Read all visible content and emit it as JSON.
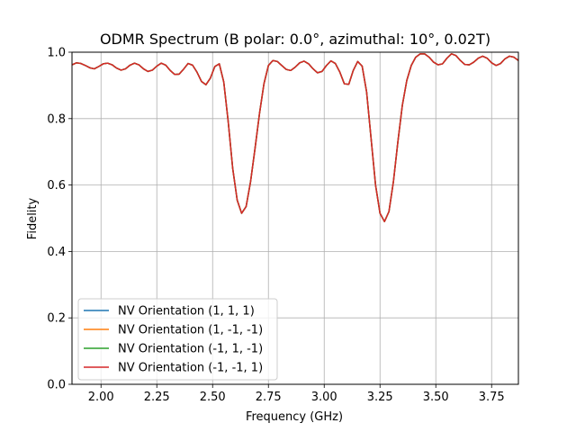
{
  "chart_data": {
    "type": "line",
    "title": "ODMR Spectrum (B polar: 0.0°, azimuthal: 10°, 0.02T)",
    "xlabel": "Frequency (GHz)",
    "ylabel": "Fidelity",
    "xlim": [
      1.87,
      3.87
    ],
    "ylim": [
      0.0,
      1.0
    ],
    "xticks": [
      "2.00",
      "2.25",
      "2.50",
      "2.75",
      "3.00",
      "3.25",
      "3.50",
      "3.75"
    ],
    "yticks": [
      "0.0",
      "0.2",
      "0.4",
      "0.6",
      "0.8",
      "1.0"
    ],
    "grid": true,
    "legend_position": "lower-left",
    "x": [
      1.87,
      1.89,
      1.91,
      1.93,
      1.95,
      1.97,
      1.99,
      2.01,
      2.03,
      2.05,
      2.07,
      2.09,
      2.11,
      2.13,
      2.15,
      2.17,
      2.19,
      2.21,
      2.23,
      2.25,
      2.27,
      2.29,
      2.31,
      2.33,
      2.35,
      2.37,
      2.39,
      2.41,
      2.43,
      2.45,
      2.47,
      2.49,
      2.51,
      2.53,
      2.55,
      2.57,
      2.59,
      2.61,
      2.63,
      2.65,
      2.67,
      2.69,
      2.71,
      2.73,
      2.75,
      2.77,
      2.79,
      2.81,
      2.83,
      2.85,
      2.87,
      2.89,
      2.91,
      2.93,
      2.95,
      2.97,
      2.99,
      3.01,
      3.03,
      3.05,
      3.07,
      3.09,
      3.11,
      3.13,
      3.15,
      3.17,
      3.19,
      3.21,
      3.23,
      3.25,
      3.27,
      3.29,
      3.31,
      3.33,
      3.35,
      3.37,
      3.39,
      3.41,
      3.43,
      3.45,
      3.47,
      3.49,
      3.51,
      3.53,
      3.55,
      3.57,
      3.59,
      3.61,
      3.63,
      3.65,
      3.67,
      3.69,
      3.71,
      3.73,
      3.75,
      3.77,
      3.79,
      3.81,
      3.83,
      3.85,
      3.87
    ],
    "series": [
      {
        "name": "NV Orientation (1, 1, 1)",
        "color": "#1f77b4",
        "y": [
          0.962,
          0.968,
          0.966,
          0.96,
          0.953,
          0.95,
          0.957,
          0.965,
          0.967,
          0.962,
          0.952,
          0.946,
          0.95,
          0.961,
          0.967,
          0.962,
          0.95,
          0.942,
          0.946,
          0.958,
          0.967,
          0.961,
          0.945,
          0.933,
          0.934,
          0.949,
          0.966,
          0.961,
          0.94,
          0.912,
          0.902,
          0.922,
          0.957,
          0.965,
          0.91,
          0.79,
          0.65,
          0.555,
          0.515,
          0.535,
          0.61,
          0.71,
          0.815,
          0.905,
          0.96,
          0.975,
          0.972,
          0.96,
          0.948,
          0.945,
          0.955,
          0.968,
          0.973,
          0.965,
          0.95,
          0.938,
          0.942,
          0.96,
          0.974,
          0.966,
          0.94,
          0.905,
          0.903,
          0.945,
          0.972,
          0.958,
          0.88,
          0.74,
          0.6,
          0.515,
          0.49,
          0.52,
          0.61,
          0.73,
          0.84,
          0.915,
          0.96,
          0.985,
          0.995,
          0.995,
          0.985,
          0.97,
          0.962,
          0.965,
          0.982,
          0.995,
          0.99,
          0.975,
          0.963,
          0.962,
          0.97,
          0.982,
          0.988,
          0.982,
          0.968,
          0.96,
          0.966,
          0.98,
          0.988,
          0.985,
          0.975
        ]
      },
      {
        "name": "NV Orientation (1, -1, -1)",
        "color": "#ff7f0e",
        "y": [
          0.962,
          0.968,
          0.966,
          0.96,
          0.953,
          0.95,
          0.957,
          0.965,
          0.967,
          0.962,
          0.952,
          0.946,
          0.95,
          0.961,
          0.967,
          0.962,
          0.95,
          0.942,
          0.946,
          0.958,
          0.967,
          0.961,
          0.945,
          0.933,
          0.934,
          0.949,
          0.966,
          0.961,
          0.94,
          0.912,
          0.902,
          0.922,
          0.957,
          0.965,
          0.91,
          0.79,
          0.65,
          0.555,
          0.515,
          0.535,
          0.61,
          0.71,
          0.815,
          0.905,
          0.96,
          0.975,
          0.972,
          0.96,
          0.948,
          0.945,
          0.955,
          0.968,
          0.973,
          0.965,
          0.95,
          0.938,
          0.942,
          0.96,
          0.974,
          0.966,
          0.94,
          0.905,
          0.903,
          0.945,
          0.972,
          0.958,
          0.88,
          0.74,
          0.6,
          0.515,
          0.49,
          0.52,
          0.61,
          0.73,
          0.84,
          0.915,
          0.96,
          0.985,
          0.995,
          0.995,
          0.985,
          0.97,
          0.962,
          0.965,
          0.982,
          0.995,
          0.99,
          0.975,
          0.963,
          0.962,
          0.97,
          0.982,
          0.988,
          0.982,
          0.968,
          0.96,
          0.966,
          0.98,
          0.988,
          0.985,
          0.975
        ]
      },
      {
        "name": "NV Orientation (-1, 1, -1)",
        "color": "#2ca02c",
        "y": [
          0.962,
          0.968,
          0.966,
          0.96,
          0.953,
          0.95,
          0.957,
          0.965,
          0.967,
          0.962,
          0.952,
          0.946,
          0.95,
          0.961,
          0.967,
          0.962,
          0.95,
          0.942,
          0.946,
          0.958,
          0.967,
          0.961,
          0.945,
          0.933,
          0.934,
          0.949,
          0.966,
          0.961,
          0.94,
          0.912,
          0.902,
          0.922,
          0.957,
          0.965,
          0.91,
          0.79,
          0.65,
          0.555,
          0.515,
          0.535,
          0.61,
          0.71,
          0.815,
          0.905,
          0.96,
          0.975,
          0.972,
          0.96,
          0.948,
          0.945,
          0.955,
          0.968,
          0.973,
          0.965,
          0.95,
          0.938,
          0.942,
          0.96,
          0.974,
          0.966,
          0.94,
          0.905,
          0.903,
          0.945,
          0.972,
          0.958,
          0.88,
          0.74,
          0.6,
          0.515,
          0.49,
          0.52,
          0.61,
          0.73,
          0.84,
          0.915,
          0.96,
          0.985,
          0.995,
          0.995,
          0.985,
          0.97,
          0.962,
          0.965,
          0.982,
          0.995,
          0.99,
          0.975,
          0.963,
          0.962,
          0.97,
          0.982,
          0.988,
          0.982,
          0.968,
          0.96,
          0.966,
          0.98,
          0.988,
          0.985,
          0.975
        ]
      },
      {
        "name": "NV Orientation (-1, -1, 1)",
        "color": "#d62728",
        "y": [
          0.962,
          0.968,
          0.966,
          0.96,
          0.953,
          0.95,
          0.957,
          0.965,
          0.967,
          0.962,
          0.952,
          0.946,
          0.95,
          0.961,
          0.967,
          0.962,
          0.95,
          0.942,
          0.946,
          0.958,
          0.967,
          0.961,
          0.945,
          0.933,
          0.934,
          0.949,
          0.966,
          0.961,
          0.94,
          0.912,
          0.902,
          0.922,
          0.957,
          0.965,
          0.91,
          0.79,
          0.65,
          0.555,
          0.515,
          0.535,
          0.61,
          0.71,
          0.815,
          0.905,
          0.96,
          0.975,
          0.972,
          0.96,
          0.948,
          0.945,
          0.955,
          0.968,
          0.973,
          0.965,
          0.95,
          0.938,
          0.942,
          0.96,
          0.974,
          0.966,
          0.94,
          0.905,
          0.903,
          0.945,
          0.972,
          0.958,
          0.88,
          0.74,
          0.6,
          0.515,
          0.49,
          0.52,
          0.61,
          0.73,
          0.84,
          0.915,
          0.96,
          0.985,
          0.995,
          0.995,
          0.985,
          0.97,
          0.962,
          0.965,
          0.982,
          0.995,
          0.99,
          0.975,
          0.963,
          0.962,
          0.97,
          0.982,
          0.988,
          0.982,
          0.968,
          0.96,
          0.966,
          0.98,
          0.988,
          0.985,
          0.975
        ]
      }
    ]
  }
}
